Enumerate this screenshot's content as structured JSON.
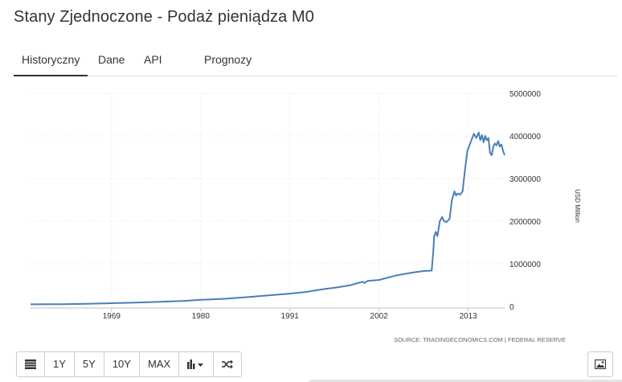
{
  "page": {
    "title": "Stany Zjednoczone - Podaż pieniądza M0"
  },
  "tabs": [
    {
      "label": "Historyczny",
      "active": true
    },
    {
      "label": "Dane",
      "active": false
    },
    {
      "label": "API",
      "active": false
    },
    {
      "label": "Prognozy",
      "active": false
    }
  ],
  "toolbar": {
    "buttons": [
      {
        "name": "table-view-button",
        "icon": "table-icon",
        "label": ""
      },
      {
        "name": "range-1y-button",
        "label": "1Y"
      },
      {
        "name": "range-5y-button",
        "label": "5Y"
      },
      {
        "name": "range-10y-button",
        "label": "10Y"
      },
      {
        "name": "range-max-button",
        "label": "MAX"
      },
      {
        "name": "chart-type-button",
        "icon": "bar-chart-dropdown-icon",
        "label": ""
      },
      {
        "name": "compare-button",
        "icon": "shuffle-icon",
        "label": ""
      }
    ],
    "image_button_icon": "image-icon"
  },
  "colors": {
    "line": "#4a7fb5",
    "grid": "#e6e6e6",
    "axis": "#c0c0c0",
    "text": "#333333"
  },
  "chart_data": {
    "type": "line",
    "title": "",
    "xlabel": "",
    "ylabel": "USD Million",
    "source": "SOURCE: TRADINGECONOMICS.COM | FEDERAL RESERVE",
    "xlim": [
      1959,
      2017.5
    ],
    "ylim": [
      0,
      5000000
    ],
    "x_ticks": [
      1969,
      1980,
      1991,
      2002,
      2013
    ],
    "y_ticks": [
      0,
      1000000,
      2000000,
      3000000,
      4000000,
      5000000
    ],
    "grid": true,
    "legend": "none",
    "series": [
      {
        "x": [
          1959,
          1963,
          1966,
          1969,
          1972,
          1975,
          1978,
          1980,
          1983,
          1986,
          1989,
          1991,
          1993,
          1995,
          1997,
          1998.5,
          2000,
          2000.2,
          2000.6,
          2002,
          2004,
          2006,
          2007.5,
          2008.5,
          2008.7,
          2008.8,
          2009.0,
          2009.2,
          2009.5,
          2009.8,
          2010.0,
          2010.3,
          2010.7,
          2011.0,
          2011.3,
          2011.5,
          2011.7,
          2012.0,
          2012.3,
          2012.6,
          2012.9,
          2013.3,
          2013.7,
          2014.0,
          2014.3,
          2014.5,
          2014.7,
          2014.9,
          2015.1,
          2015.3,
          2015.5,
          2015.7,
          2015.9,
          2016.1,
          2016.3,
          2016.5,
          2016.7,
          2016.9,
          2017.1,
          2017.3,
          2017.5
        ],
        "y": [
          50000,
          53000,
          60000,
          75000,
          90000,
          110000,
          130000,
          155000,
          180000,
          220000,
          270000,
          300000,
          340000,
          400000,
          450000,
          500000,
          580000,
          550000,
          600000,
          620000,
          720000,
          790000,
          830000,
          840000,
          1300000,
          1650000,
          1750000,
          1650000,
          2000000,
          2100000,
          2000000,
          1980000,
          2050000,
          2500000,
          2700000,
          2600000,
          2650000,
          2620000,
          2700000,
          3200000,
          3650000,
          3850000,
          4050000,
          3950000,
          4080000,
          3900000,
          4020000,
          3850000,
          4000000,
          3900000,
          3950000,
          3600000,
          3550000,
          3750000,
          3820000,
          3780000,
          3880000,
          3750000,
          3800000,
          3650000,
          3550000
        ]
      }
    ]
  }
}
